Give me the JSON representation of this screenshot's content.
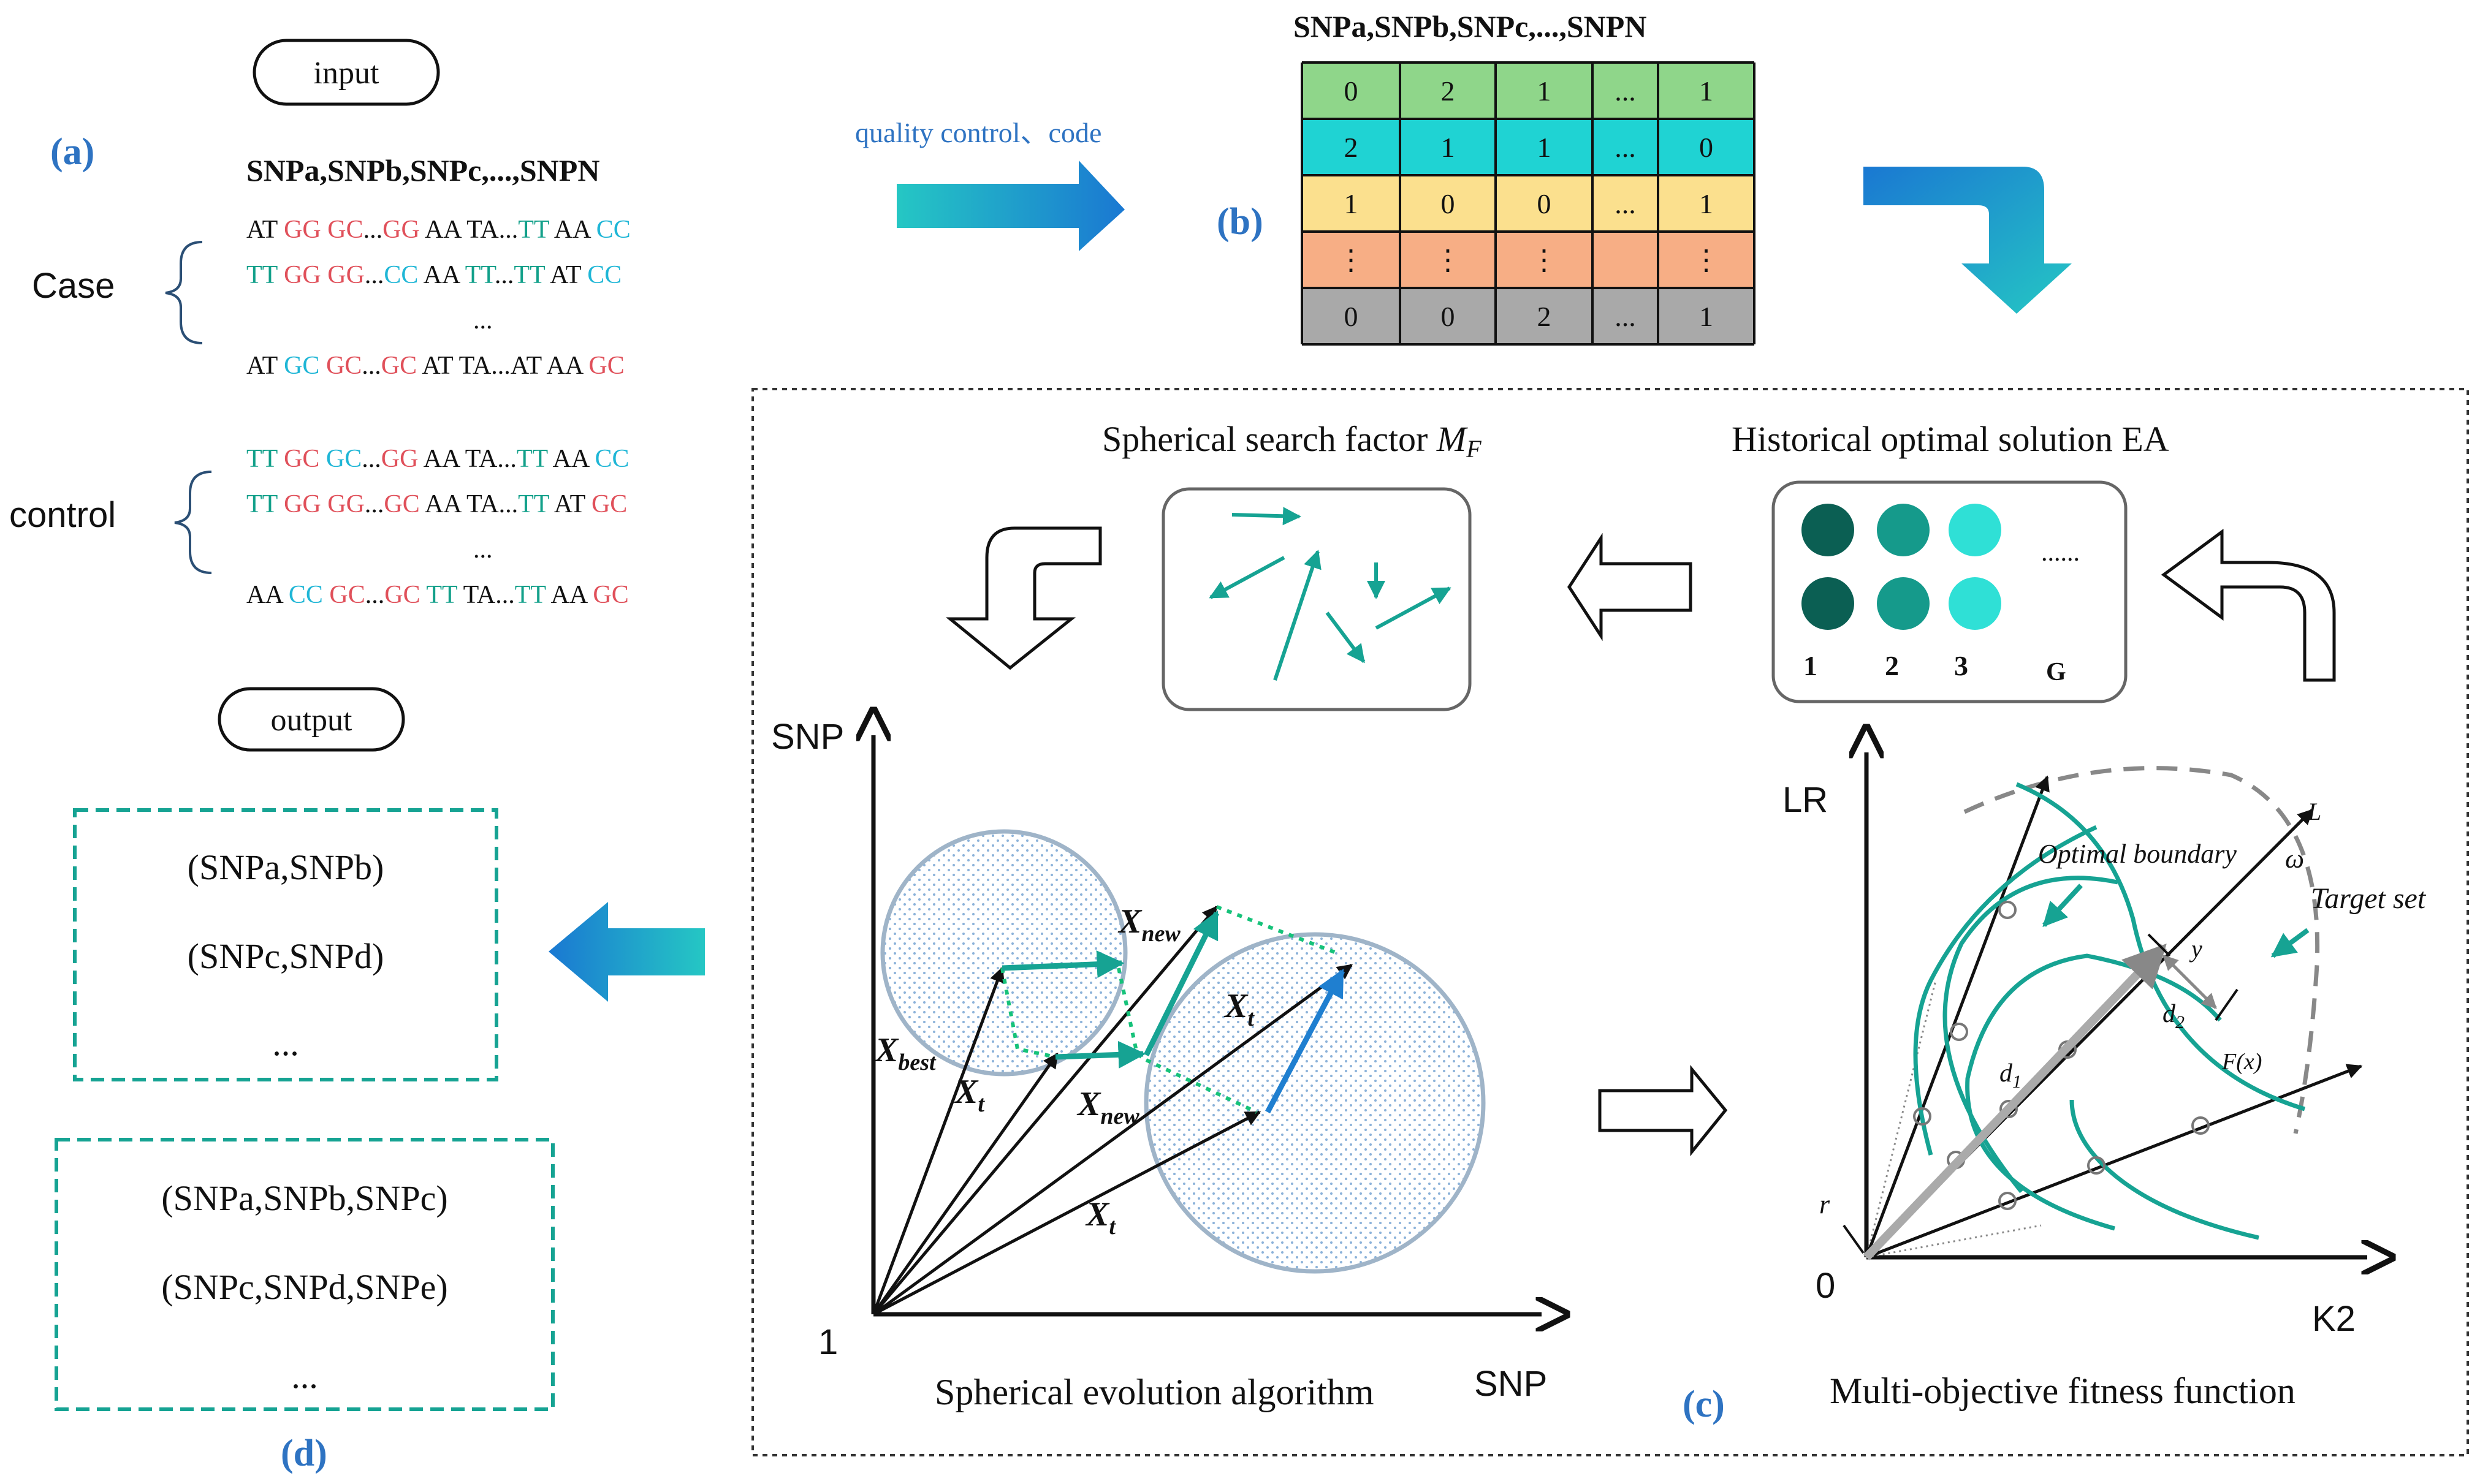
{
  "panel_a": {
    "label": "(a)",
    "input_label": "input",
    "header": "SNPa,SNPb,SNPc,...,SNPN",
    "case_label": "Case",
    "control_label": "control",
    "case_rows": [
      [
        [
          "AT ",
          "#111111"
        ],
        [
          "GG ",
          "#e0505a"
        ],
        [
          "GC",
          "#e0505a"
        ],
        [
          "...",
          "#111111"
        ],
        [
          "GG ",
          "#e0505a"
        ],
        [
          "AA ",
          "#111111"
        ],
        [
          "TA",
          "#111111"
        ],
        [
          "...",
          "#111111"
        ],
        [
          "TT ",
          "#12a08a"
        ],
        [
          "AA ",
          "#111111"
        ],
        [
          "CC",
          "#1fb6d6"
        ]
      ],
      [
        [
          "TT ",
          "#12a08a"
        ],
        [
          "GG ",
          "#e0505a"
        ],
        [
          "GG",
          "#e0505a"
        ],
        [
          "...",
          "#111111"
        ],
        [
          "CC ",
          "#1fb6d6"
        ],
        [
          "AA ",
          "#111111"
        ],
        [
          "TT",
          "#12a08a"
        ],
        [
          "...",
          "#111111"
        ],
        [
          "TT ",
          "#12a08a"
        ],
        [
          "AT ",
          "#111111"
        ],
        [
          "CC",
          "#1fb6d6"
        ]
      ],
      [
        [
          "...",
          "#111111"
        ]
      ],
      [
        [
          "AT ",
          "#111111"
        ],
        [
          "GC ",
          "#1fb6d6"
        ],
        [
          "GC",
          "#e0505a"
        ],
        [
          "...",
          "#111111"
        ],
        [
          "GC ",
          "#e0505a"
        ],
        [
          "AT ",
          "#111111"
        ],
        [
          "TA",
          "#111111"
        ],
        [
          "...",
          "#111111"
        ],
        [
          "AT ",
          "#111111"
        ],
        [
          "AA ",
          "#111111"
        ],
        [
          "GC",
          "#e0505a"
        ]
      ]
    ],
    "control_rows": [
      [
        [
          "TT ",
          "#12a08a"
        ],
        [
          "GC ",
          "#e0505a"
        ],
        [
          "GC",
          "#1fb6d6"
        ],
        [
          "...",
          "#111111"
        ],
        [
          "GG ",
          "#e0505a"
        ],
        [
          "AA ",
          "#111111"
        ],
        [
          "TA",
          "#111111"
        ],
        [
          "...",
          "#111111"
        ],
        [
          "TT ",
          "#12a08a"
        ],
        [
          "AA ",
          "#111111"
        ],
        [
          "CC",
          "#1fb6d6"
        ]
      ],
      [
        [
          "TT ",
          "#12a08a"
        ],
        [
          "GG ",
          "#e0505a"
        ],
        [
          "GG",
          "#e0505a"
        ],
        [
          "...",
          "#111111"
        ],
        [
          "GC ",
          "#e0505a"
        ],
        [
          "AA ",
          "#111111"
        ],
        [
          "TA",
          "#111111"
        ],
        [
          "...",
          "#111111"
        ],
        [
          "TT ",
          "#12a08a"
        ],
        [
          "AT ",
          "#111111"
        ],
        [
          "GC",
          "#e0505a"
        ]
      ],
      [
        [
          "...",
          "#111111"
        ]
      ],
      [
        [
          "AA ",
          "#111111"
        ],
        [
          "CC ",
          "#1fb6d6"
        ],
        [
          "GC",
          "#e0505a"
        ],
        [
          "...",
          "#111111"
        ],
        [
          "GC ",
          "#e0505a"
        ],
        [
          "TT ",
          "#12a08a"
        ],
        [
          "TA",
          "#111111"
        ],
        [
          "...",
          "#111111"
        ],
        [
          "TT ",
          "#12a08a"
        ],
        [
          "AA ",
          "#111111"
        ],
        [
          "GC",
          "#e0505a"
        ]
      ]
    ]
  },
  "arrow_qc_label": "quality control、code",
  "panel_b": {
    "label": "(b)",
    "header": "SNPa,SNPb,SNPc,...,SNPN",
    "rows": [
      {
        "color": "#8fd68a",
        "cells": [
          "0",
          "2",
          "1",
          "...",
          "1"
        ]
      },
      {
        "color": "#1fd3d3",
        "cells": [
          "2",
          "1",
          "1",
          "...",
          "0"
        ]
      },
      {
        "color": "#fbe08e",
        "cells": [
          "1",
          "0",
          "0",
          "...",
          "1"
        ]
      },
      {
        "color": "#f7ae85",
        "cells": [
          "⋮",
          "⋮",
          "⋮",
          "",
          "⋮"
        ]
      },
      {
        "color": "#a9a9a9",
        "cells": [
          "0",
          "0",
          "2",
          "...",
          "1"
        ]
      }
    ]
  },
  "panel_c": {
    "label": "(c)",
    "search_factor_title": "Spherical search factor ",
    "search_factor_symbol": "M",
    "search_factor_sub": "F",
    "ea_title": "Historical optimal solution  EA",
    "ea_column_labels": [
      "1",
      "2",
      "3",
      "G"
    ],
    "ea_ellipsis": "......",
    "ea_colors": [
      "#0b5f53",
      "#159a8b",
      "#2fe0d6"
    ],
    "sea": {
      "caption": "Spherical evolution algorithm",
      "y_axis_label": "SNP",
      "x_axis_label": "SNP",
      "origin_label": "1",
      "x_best": "X",
      "x_best_sub": "best",
      "x_t": "X",
      "x_t_sub": "t",
      "x_new": "X",
      "x_new_sub": "new"
    },
    "mof": {
      "caption": "Multi-objective fitness function",
      "y_axis_label": "LR",
      "x_axis_label": "K2",
      "origin_label": "0",
      "optimal_boundary": "Optimal boundary",
      "target_set": "Target set",
      "L": "L",
      "omega": "ω",
      "y": "y",
      "d1": "d",
      "d1_sub": "1",
      "d2": "d",
      "d2_sub": "2",
      "fx": "F(x)",
      "r": "r"
    }
  },
  "panel_d": {
    "label": "(d)",
    "output_label": "output",
    "pairs": [
      "(SNPa,SNPb)",
      "(SNPc,SNPd)",
      "..."
    ],
    "triples": [
      "(SNPa,SNPb,SNPc)",
      "(SNPc,SNPd,SNPe)",
      "..."
    ]
  },
  "colors": {
    "blue_label": "#2e73c2",
    "teal": "#16a393",
    "panel_border": "#333333"
  }
}
